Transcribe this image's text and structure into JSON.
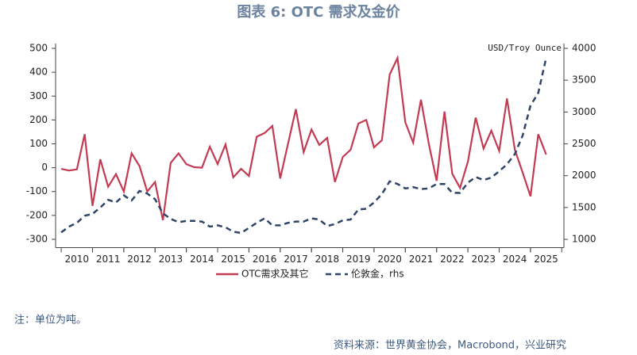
{
  "chart_data": {
    "type": "line",
    "title": "图表 6:  OTC 需求及金价",
    "y2_label": "USD/Troy Ounce",
    "note": "注：单位为吨。",
    "source": "资料来源：世界黄金协会，Macrobond，兴业研究",
    "x": [
      2010,
      2010.25,
      2010.5,
      2010.75,
      2011,
      2011.25,
      2011.5,
      2011.75,
      2012,
      2012.25,
      2012.5,
      2012.75,
      2013,
      2013.25,
      2013.5,
      2013.75,
      2014,
      2014.25,
      2014.5,
      2014.75,
      2015,
      2015.25,
      2015.5,
      2015.75,
      2016,
      2016.25,
      2016.5,
      2016.75,
      2017,
      2017.25,
      2017.5,
      2017.75,
      2018,
      2018.25,
      2018.5,
      2018.75,
      2019,
      2019.25,
      2019.5,
      2019.75,
      2020,
      2020.25,
      2020.5,
      2020.75,
      2021,
      2021.25,
      2021.5,
      2021.75,
      2022,
      2022.25,
      2022.5,
      2022.75,
      2023,
      2023.25,
      2023.5,
      2023.75,
      2024,
      2024.25,
      2024.5,
      2024.75,
      2025,
      2025.25,
      2025.5
    ],
    "xlim": [
      2009.82,
      2026.07
    ],
    "xticks": [
      {
        "value": 2010.5,
        "label": "2010"
      },
      {
        "value": 2011.5,
        "label": "2011"
      },
      {
        "value": 2012.5,
        "label": "2012"
      },
      {
        "value": 2013.5,
        "label": "2013"
      },
      {
        "value": 2014.5,
        "label": "2014"
      },
      {
        "value": 2015.5,
        "label": "2015"
      },
      {
        "value": 2016.5,
        "label": "2016"
      },
      {
        "value": 2017.5,
        "label": "2017"
      },
      {
        "value": 2018.5,
        "label": "2018"
      },
      {
        "value": 2019.5,
        "label": "2019"
      },
      {
        "value": 2020.5,
        "label": "2020"
      },
      {
        "value": 2021.5,
        "label": "2021"
      },
      {
        "value": 2022.5,
        "label": "2022"
      },
      {
        "value": 2023.5,
        "label": "2023"
      },
      {
        "value": 2024.5,
        "label": "2024"
      },
      {
        "value": 2025.5,
        "label": "2025"
      }
    ],
    "ylim": [
      -335,
      520
    ],
    "yticks": [
      -300,
      -200,
      -100,
      0,
      100,
      200,
      300,
      400,
      500
    ],
    "y2lim": [
      870,
      4075
    ],
    "y2ticks": [
      1000,
      1500,
      2000,
      2500,
      3000,
      3500,
      4000
    ],
    "series": [
      {
        "name": "OTC需求及其它",
        "color": "#c23b52",
        "dash": false,
        "values": [
          -5,
          -12,
          -7,
          140,
          -160,
          35,
          -80,
          -27,
          -100,
          60,
          7,
          -100,
          -60,
          -220,
          20,
          60,
          15,
          2,
          0,
          88,
          15,
          97,
          -40,
          -5,
          -35,
          130,
          145,
          175,
          -45,
          100,
          245,
          65,
          160,
          95,
          125,
          -60,
          45,
          75,
          185,
          200,
          85,
          115,
          390,
          460,
          190,
          105,
          285,
          100,
          -55,
          235,
          -25,
          -85,
          25,
          210,
          80,
          155,
          70,
          290,
          75,
          -20,
          -120,
          140,
          55
        ]
      },
      {
        "name": "伦敦金，rhs",
        "color": "#2e4568",
        "dash": true,
        "axis": "y2",
        "values": [
          1110,
          1200,
          1260,
          1370,
          1400,
          1500,
          1620,
          1580,
          1690,
          1610,
          1760,
          1720,
          1630,
          1410,
          1320,
          1270,
          1290,
          1290,
          1280,
          1200,
          1220,
          1190,
          1120,
          1100,
          1180,
          1260,
          1330,
          1220,
          1220,
          1260,
          1280,
          1280,
          1330,
          1310,
          1210,
          1240,
          1300,
          1310,
          1470,
          1480,
          1580,
          1710,
          1910,
          1870,
          1800,
          1820,
          1790,
          1800,
          1870,
          1870,
          1730,
          1730,
          1890,
          1980,
          1930,
          1970,
          2070,
          2180,
          2340,
          2630,
          3100,
          3300,
          3850
        ]
      }
    ]
  }
}
